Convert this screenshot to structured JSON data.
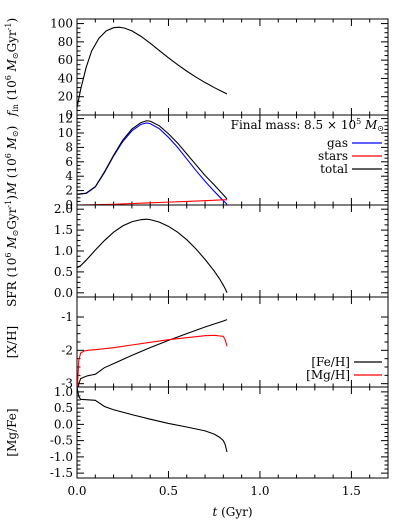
{
  "chart_data": [
    {
      "type": "line",
      "ylabel": "f_in (10^6 M_sun Gyr^-1)",
      "ylabel_html": {
        "main": "f",
        "sub": "in",
        "rest": " (10",
        "sup": "6",
        "unit": " M",
        "sun": "⊙",
        "gyr": "Gyr",
        "inv": "-1",
        "close": ")"
      },
      "xlim": [
        0,
        1.7
      ],
      "ylim": [
        0,
        105
      ],
      "yticks": [
        0,
        20,
        40,
        60,
        80,
        100
      ],
      "ytick_labels": [
        "0",
        "20",
        "40",
        "60",
        "80",
        "100"
      ],
      "series": [
        {
          "color": "#000000",
          "x": [
            0.0,
            0.02,
            0.05,
            0.08,
            0.12,
            0.16,
            0.2,
            0.23,
            0.26,
            0.3,
            0.35,
            0.4,
            0.45,
            0.5,
            0.55,
            0.6,
            0.65,
            0.7,
            0.75,
            0.8,
            0.82
          ],
          "y": [
            8,
            28,
            52,
            70,
            84,
            92,
            95.5,
            96,
            95,
            92,
            86,
            78.5,
            70.5,
            62.5,
            55,
            48,
            41.5,
            35.5,
            30,
            25,
            23
          ]
        }
      ]
    },
    {
      "type": "line",
      "ylabel": "M (10^6 M_sun)",
      "xlim": [
        0,
        1.7
      ],
      "ylim": [
        0,
        12.5
      ],
      "yticks": [
        0,
        2,
        4,
        6,
        8,
        10,
        12
      ],
      "ytick_labels": [
        "0",
        "2",
        "4",
        "6",
        "8",
        "10",
        "12"
      ],
      "annotation": "Final mass: 8.5 × 10^5 M_sun",
      "annotation_parts": {
        "prefix": "Final mass: 8.5 × 10",
        "sup": "5",
        "unit": " M",
        "sun": "⊙"
      },
      "legend": "top-right",
      "series": [
        {
          "name": "gas",
          "color": "#0000ff",
          "x": [
            0.0,
            0.05,
            0.1,
            0.15,
            0.2,
            0.25,
            0.3,
            0.35,
            0.38,
            0.4,
            0.45,
            0.5,
            0.55,
            0.6,
            0.65,
            0.7,
            0.75,
            0.8,
            0.82
          ],
          "y": [
            1.5,
            1.6,
            2.5,
            4.5,
            6.8,
            8.8,
            10.3,
            11.2,
            11.4,
            11.3,
            10.6,
            9.4,
            8.0,
            6.4,
            4.8,
            3.3,
            1.9,
            0.6,
            0.1
          ]
        },
        {
          "name": "stars",
          "color": "#ff0000",
          "x": [
            0.0,
            0.1,
            0.2,
            0.3,
            0.4,
            0.5,
            0.6,
            0.7,
            0.8,
            0.82
          ],
          "y": [
            0.0,
            0.05,
            0.1,
            0.2,
            0.3,
            0.4,
            0.5,
            0.6,
            0.72,
            0.74
          ]
        },
        {
          "name": "total",
          "color": "#000000",
          "x": [
            0.0,
            0.05,
            0.1,
            0.15,
            0.2,
            0.25,
            0.3,
            0.35,
            0.38,
            0.4,
            0.45,
            0.5,
            0.55,
            0.6,
            0.65,
            0.7,
            0.75,
            0.8,
            0.82
          ],
          "y": [
            1.5,
            1.65,
            2.55,
            4.6,
            6.9,
            9.0,
            10.55,
            11.45,
            11.7,
            11.65,
            11.0,
            9.9,
            8.6,
            7.1,
            5.6,
            4.1,
            2.8,
            1.4,
            0.85
          ]
        }
      ]
    },
    {
      "type": "line",
      "ylabel": "SFR (10^6 M_sun Gyr^-1)",
      "xlim": [
        0,
        1.7
      ],
      "ylim": [
        -0.1,
        2.1
      ],
      "yticks": [
        0.0,
        0.5,
        1.0,
        1.5,
        2.0
      ],
      "ytick_labels": [
        "0.0",
        "0.5",
        "1.0",
        "1.5",
        "2.0"
      ],
      "series": [
        {
          "color": "#000000",
          "x": [
            0.0,
            0.02,
            0.05,
            0.1,
            0.15,
            0.2,
            0.25,
            0.3,
            0.35,
            0.38,
            0.4,
            0.45,
            0.5,
            0.55,
            0.6,
            0.65,
            0.7,
            0.75,
            0.78,
            0.8,
            0.81,
            0.82
          ],
          "y": [
            0.6,
            0.65,
            0.78,
            1.02,
            1.25,
            1.45,
            1.6,
            1.7,
            1.75,
            1.76,
            1.75,
            1.69,
            1.59,
            1.45,
            1.27,
            1.05,
            0.8,
            0.52,
            0.33,
            0.18,
            0.1,
            0.0
          ]
        }
      ]
    },
    {
      "type": "line",
      "ylabel": "[X/H]",
      "xlim": [
        0,
        1.7
      ],
      "ylim": [
        -3.1,
        -0.4
      ],
      "yticks": [
        -3,
        -2,
        -1
      ],
      "ytick_labels": [
        "-3",
        "-2",
        "-1"
      ],
      "legend": "bottom-right",
      "series": [
        {
          "name": "[Fe/H]",
          "color": "#000000",
          "x": [
            0.0,
            0.005,
            0.01,
            0.02,
            0.04,
            0.06,
            0.08,
            0.1,
            0.15,
            0.2,
            0.3,
            0.4,
            0.5,
            0.6,
            0.7,
            0.8,
            0.82
          ],
          "y": [
            -3.5,
            -3.2,
            -3.0,
            -2.85,
            -2.8,
            -2.76,
            -2.74,
            -2.72,
            -2.52,
            -2.4,
            -2.15,
            -1.92,
            -1.7,
            -1.5,
            -1.3,
            -1.12,
            -1.08
          ]
        },
        {
          "name": "[Mg/H]",
          "color": "#ff0000",
          "x": [
            0.0,
            0.005,
            0.01,
            0.02,
            0.04,
            0.06,
            0.1,
            0.2,
            0.3,
            0.4,
            0.5,
            0.6,
            0.7,
            0.75,
            0.8,
            0.81,
            0.82
          ],
          "y": [
            -3.5,
            -2.8,
            -2.3,
            -2.08,
            -2.02,
            -2.0,
            -1.98,
            -1.92,
            -1.84,
            -1.76,
            -1.68,
            -1.62,
            -1.56,
            -1.55,
            -1.58,
            -1.68,
            -1.88
          ]
        }
      ]
    },
    {
      "type": "line",
      "ylabel": "[Mg/Fe]",
      "xlim": [
        0,
        1.7
      ],
      "ylim": [
        -1.65,
        1.15
      ],
      "yticks": [
        -1.5,
        -1.0,
        -0.5,
        0.0,
        0.5,
        1.0
      ],
      "ytick_labels": [
        "-1.5",
        "-1.0",
        "-0.5",
        "0.0",
        "0.5",
        "1.0"
      ],
      "xticks": [
        0.0,
        0.5,
        1.0,
        1.5
      ],
      "xtick_labels": [
        "0.0",
        "0.5",
        "1.0",
        "1.5"
      ],
      "xlabel": "t (Gyr)",
      "series": [
        {
          "color": "#000000",
          "x": [
            0.0,
            0.005,
            0.01,
            0.02,
            0.05,
            0.1,
            0.15,
            0.2,
            0.3,
            0.4,
            0.5,
            0.6,
            0.7,
            0.75,
            0.78,
            0.8,
            0.81,
            0.82
          ],
          "y": [
            1.15,
            1.0,
            0.85,
            0.77,
            0.76,
            0.74,
            0.55,
            0.45,
            0.3,
            0.16,
            0.03,
            -0.08,
            -0.2,
            -0.3,
            -0.4,
            -0.5,
            -0.62,
            -0.85
          ]
        }
      ]
    }
  ]
}
